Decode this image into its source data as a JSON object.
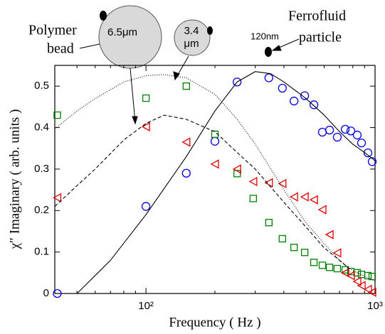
{
  "chart_data": {
    "type": "scatter",
    "xlabel": "Frequency ( Hz )",
    "ylabel": "χ″ Imaginary ( arb. units )",
    "xscale": "log",
    "xlim": [
      40,
      1000
    ],
    "ylim": [
      0,
      0.55
    ],
    "xticks": [
      {
        "value": 100,
        "label": "10²"
      },
      {
        "value": 1000,
        "label": "10³"
      }
    ],
    "xminorticks": [
      50,
      60,
      70,
      80,
      90,
      200,
      300,
      400,
      500,
      600,
      700,
      800,
      900
    ],
    "yticks": [
      0,
      0.1,
      0.2,
      0.3,
      0.4,
      0.5
    ],
    "annotations": [
      "Polymer",
      "bead",
      "6.5μm",
      "3.4",
      "μm",
      "120nm",
      "Ferrofluid",
      "particle"
    ],
    "series": [
      {
        "type": "markers",
        "marker": "circle",
        "color": "#0000e0",
        "x": [
          41,
          100,
          150,
          200,
          250,
          344,
          394,
          443,
          493,
          541,
          589,
          633,
          684,
          741,
          784,
          836,
          873,
          931,
          972
        ],
        "values": [
          0,
          0.21,
          0.29,
          0.367,
          0.51,
          0.52,
          0.495,
          0.464,
          0.477,
          0.455,
          0.389,
          0.394,
          0.377,
          0.396,
          0.392,
          0.382,
          0.363,
          0.339,
          0.318
        ]
      },
      {
        "type": "markers",
        "marker": "square",
        "color": "#008000",
        "x": [
          41,
          100,
          150,
          200,
          250,
          294,
          344,
          394,
          443,
          493,
          541,
          589,
          633,
          684,
          741,
          784,
          836,
          873,
          931,
          972
        ],
        "values": [
          0.43,
          0.471,
          0.5,
          0.384,
          0.289,
          0.229,
          0.171,
          0.132,
          0.111,
          0.099,
          0.075,
          0.068,
          0.063,
          0.06,
          0.057,
          0.053,
          0.05,
          0.046,
          0.043,
          0.041
        ]
      },
      {
        "type": "markers",
        "marker": "triangle-left",
        "color": "#e00000",
        "x": [
          41,
          100,
          150,
          200,
          250,
          294,
          344,
          394,
          443,
          493,
          541,
          589,
          633,
          684,
          741,
          784,
          836,
          873,
          931,
          972
        ],
        "values": [
          0.231,
          0.402,
          0.365,
          0.312,
          0.3,
          0.27,
          0.267,
          0.265,
          0.233,
          0.233,
          0.226,
          0.202,
          0.142,
          0.098,
          0.05,
          0.043,
          0.029,
          0.019,
          0.01,
          0.003
        ]
      },
      {
        "type": "line",
        "dash": "1 2",
        "color": "#000000",
        "x": [
          40,
          50,
          60,
          80,
          100,
          120,
          150,
          200,
          250,
          300,
          400,
          500,
          600,
          700,
          800,
          1000
        ],
        "values": [
          0.397,
          0.44,
          0.47,
          0.51,
          0.525,
          0.528,
          0.52,
          0.48,
          0.42,
          0.36,
          0.25,
          0.17,
          0.12,
          0.08,
          0.055,
          0.03
        ]
      },
      {
        "type": "line",
        "dash": "5 3",
        "color": "#000000",
        "x": [
          40,
          50,
          60,
          80,
          100,
          120,
          150,
          200,
          250,
          300,
          400,
          500,
          600,
          700,
          770
        ],
        "values": [
          0.21,
          0.26,
          0.3,
          0.37,
          0.41,
          0.43,
          0.42,
          0.39,
          0.34,
          0.3,
          0.22,
          0.16,
          0.11,
          0.08,
          0.06
        ]
      },
      {
        "type": "line",
        "dash": "none",
        "color": "#000000",
        "x": [
          50,
          70,
          100,
          150,
          200,
          250,
          300,
          350,
          400,
          500,
          600,
          700,
          800,
          900,
          1000
        ],
        "values": [
          0,
          0.08,
          0.19,
          0.33,
          0.44,
          0.51,
          0.535,
          0.53,
          0.51,
          0.47,
          0.43,
          0.39,
          0.36,
          0.34,
          0.32
        ]
      }
    ]
  }
}
